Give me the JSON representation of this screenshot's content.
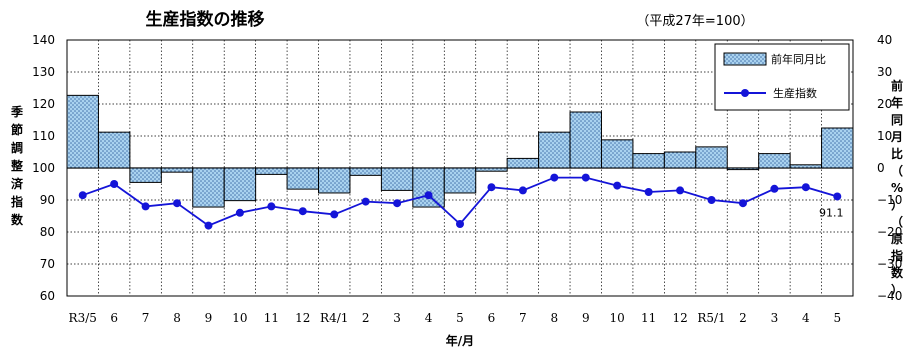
{
  "chart_data": {
    "type": "bar+line",
    "title": "生産指数の推移",
    "subtitle": "（平成27年=100）",
    "xlabel": "年/月",
    "ylabel_left_chars": [
      "季",
      "節",
      "調",
      "整",
      "済",
      "指",
      "数"
    ],
    "ylabel_right_chars": [
      "前",
      "年",
      "同",
      "月",
      "比",
      "（",
      "%",
      "）",
      "（",
      "原",
      "指",
      "数",
      "）"
    ],
    "ylim_left": [
      60,
      140
    ],
    "yticks_left": [
      60,
      70,
      80,
      90,
      100,
      110,
      120,
      130,
      140
    ],
    "ylim_right": [
      -40,
      40
    ],
    "yticks_right": [
      "40",
      "30",
      "20",
      "10",
      "0",
      "−10",
      "−20",
      "−30",
      "−40"
    ],
    "categories": [
      "R3/5",
      "6",
      "7",
      "8",
      "9",
      "10",
      "11",
      "12",
      "R4/1",
      "2",
      "3",
      "4",
      "5",
      "6",
      "7",
      "8",
      "9",
      "10",
      "11",
      "12",
      "R5/1",
      "2",
      "3",
      "4",
      "5"
    ],
    "series": [
      {
        "name": "前年同月比",
        "type": "bar",
        "axis": "right",
        "values": [
          22.7,
          11.2,
          -4.5,
          -1.3,
          -12.2,
          -10.2,
          -2.0,
          -6.6,
          -7.8,
          -2.3,
          -7.0,
          -12.2,
          -7.8,
          -1.0,
          3.0,
          11.2,
          17.5,
          8.8,
          4.5,
          5.0,
          6.6,
          -0.5,
          4.5,
          1.0,
          12.5
        ]
      },
      {
        "name": "生産指数",
        "type": "line",
        "axis": "left",
        "values": [
          91.5,
          95.0,
          88.0,
          89.0,
          82.0,
          86.0,
          88.0,
          86.5,
          85.5,
          89.5,
          89.0,
          91.5,
          82.5,
          94.0,
          93.0,
          97.0,
          97.0,
          94.5,
          92.5,
          93.0,
          90.0,
          89.0,
          93.5,
          94.0,
          91.1
        ]
      }
    ],
    "annotation": "91.1",
    "grid": true,
    "legend_position": "top-right",
    "colors": {
      "bar_fill": "#a9d2ef",
      "bar_dot": "#3c6aa4",
      "line": "#1414d8",
      "grid": "#000000"
    }
  }
}
